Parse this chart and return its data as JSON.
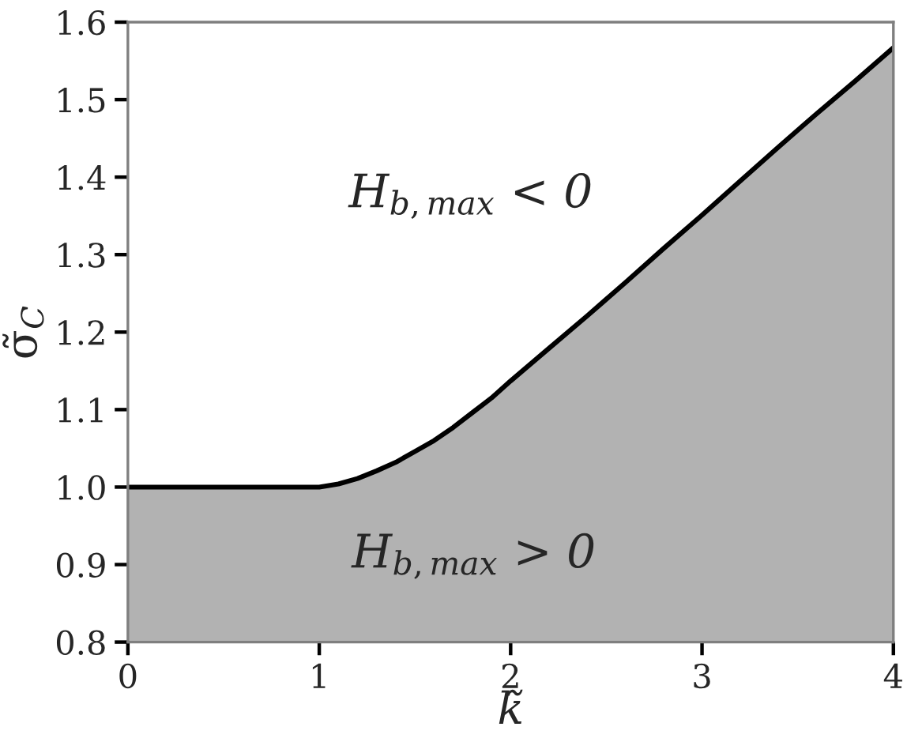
{
  "chart_data": {
    "type": "area",
    "xlabel": "k̃",
    "ylabel": "σ̃$_{C}$",
    "x": [
      0,
      0.5,
      1.0,
      1.1,
      1.2,
      1.3,
      1.4,
      1.5,
      1.6,
      1.7,
      1.8,
      1.9,
      2.0,
      2.2,
      2.4,
      2.6,
      2.8,
      3.0,
      3.2,
      3.4,
      3.6,
      3.8,
      4.0
    ],
    "series": [
      {
        "color": "#b2b2b2",
        "values": [
          1.0,
          1.0,
          1.0,
          1.004,
          1.011,
          1.021,
          1.032,
          1.046,
          1.06,
          1.077,
          1.096,
          1.115,
          1.137,
          1.179,
          1.221,
          1.264,
          1.308,
          1.351,
          1.395,
          1.439,
          1.482,
          1.524,
          1.567
        ]
      }
    ],
    "xlim": [
      0,
      4
    ],
    "xticks": [
      0,
      1,
      2,
      3,
      4
    ],
    "ylim": [
      0.8,
      1.6
    ],
    "yticks": [
      0.8,
      0.9,
      {
        "value": 1,
        "label": "1.0"
      },
      1.1,
      1.2,
      1.3,
      1.4,
      1.5,
      1.6
    ],
    "annotations": [
      "H$_{b,max}$ < 0",
      "H$_{b,max}$ > 0"
    ]
  }
}
